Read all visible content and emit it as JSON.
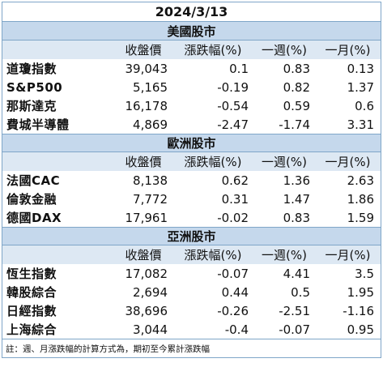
{
  "date": "2024/3/13",
  "columns": [
    "收盤價",
    "漲跌幅(%)",
    "一週(%)",
    "一月(%)"
  ],
  "sections": [
    {
      "name": "美國股市",
      "rows": [
        {
          "label": "道瓊指數",
          "close": "39,043",
          "chg": "0.1",
          "week": "0.83",
          "month": "0.13"
        },
        {
          "label": "S&P500",
          "close": "5,165",
          "chg": "-0.19",
          "week": "0.82",
          "month": "1.37"
        },
        {
          "label": "那斯達克",
          "close": "16,178",
          "chg": "-0.54",
          "week": "0.59",
          "month": "0.6"
        },
        {
          "label": "費城半導體",
          "close": "4,869",
          "chg": "-2.47",
          "week": "-1.74",
          "month": "3.31"
        }
      ]
    },
    {
      "name": "歐洲股市",
      "rows": [
        {
          "label": "法國CAC",
          "close": "8,138",
          "chg": "0.62",
          "week": "1.36",
          "month": "2.63"
        },
        {
          "label": "倫敦金融",
          "close": "7,772",
          "chg": "0.31",
          "week": "1.47",
          "month": "1.86"
        },
        {
          "label": "德國DAX",
          "close": "17,961",
          "chg": "-0.02",
          "week": "0.83",
          "month": "1.59"
        }
      ]
    },
    {
      "name": "亞洲股市",
      "rows": [
        {
          "label": "恆生指數",
          "close": "17,082",
          "chg": "-0.07",
          "week": "4.41",
          "month": "3.5"
        },
        {
          "label": "韓股綜合",
          "close": "2,694",
          "chg": "0.44",
          "week": "0.5",
          "month": "1.95"
        },
        {
          "label": "日經指數",
          "close": "38,696",
          "chg": "-0.26",
          "week": "-2.51",
          "month": "-1.16"
        },
        {
          "label": "上海綜合",
          "close": "3,044",
          "chg": "-0.4",
          "week": "-0.07",
          "month": "0.95"
        }
      ]
    }
  ],
  "note": "註：週、月漲跌幅的計算方式為，期初至今累計漲跌幅"
}
